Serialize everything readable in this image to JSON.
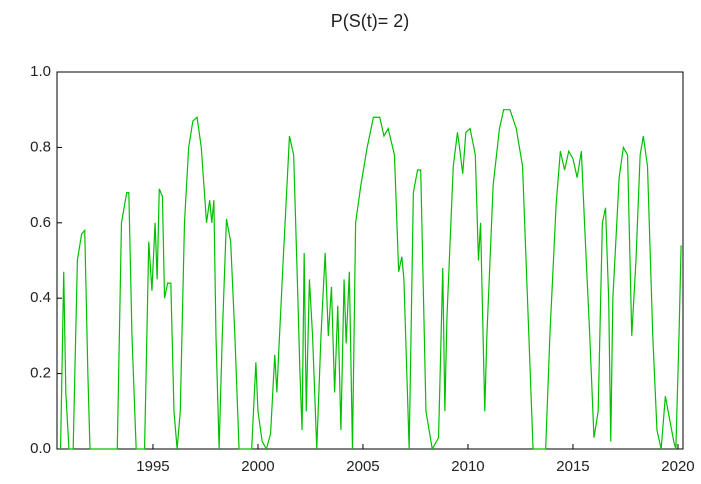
{
  "chart_data": {
    "type": "line",
    "title": "P(S(t)= 2)",
    "x": [
      1990.6,
      1990.75,
      1990.85,
      1991.0,
      1991.2,
      1991.4,
      1991.6,
      1991.75,
      1991.9,
      1992.0,
      1993.1,
      1993.3,
      1993.5,
      1993.75,
      1993.85,
      1994.0,
      1994.2,
      1994.6,
      1994.8,
      1994.95,
      1995.1,
      1995.2,
      1995.3,
      1995.45,
      1995.55,
      1995.7,
      1995.85,
      1996.0,
      1996.15,
      1996.3,
      1996.5,
      1996.7,
      1996.9,
      1997.1,
      1997.3,
      1997.55,
      1997.7,
      1997.8,
      1997.9,
      1998.0,
      1998.15,
      1998.3,
      1998.5,
      1998.7,
      1998.9,
      1999.1,
      1999.7,
      1999.9,
      2000.0,
      2000.2,
      2000.4,
      2000.6,
      2000.8,
      2000.9,
      2001.0,
      2001.2,
      2001.5,
      2001.7,
      2001.9,
      2002.0,
      2002.1,
      2002.2,
      2002.3,
      2002.45,
      2002.6,
      2002.8,
      2003.0,
      2003.2,
      2003.35,
      2003.5,
      2003.65,
      2003.8,
      2003.95,
      2004.1,
      2004.2,
      2004.35,
      2004.5,
      2004.65,
      2004.9,
      2005.2,
      2005.5,
      2005.8,
      2006.0,
      2006.2,
      2006.5,
      2006.7,
      2006.85,
      2006.95,
      2007.2,
      2007.4,
      2007.6,
      2007.75,
      2008.0,
      2008.3,
      2008.6,
      2008.8,
      2008.9,
      2009.0,
      2009.3,
      2009.5,
      2009.6,
      2009.75,
      2009.9,
      2010.1,
      2010.35,
      2010.5,
      2010.6,
      2010.8,
      2010.9,
      2011.2,
      2011.5,
      2011.7,
      2012.0,
      2012.3,
      2012.6,
      2012.9,
      2013.1,
      2013.7,
      2013.9,
      2014.2,
      2014.4,
      2014.6,
      2014.8,
      2015.0,
      2015.2,
      2015.4,
      2015.55,
      2015.8,
      2016.0,
      2016.2,
      2016.4,
      2016.55,
      2016.7,
      2016.8,
      2016.9,
      2017.2,
      2017.4,
      2017.6,
      2017.8,
      2018.0,
      2018.2,
      2018.35,
      2018.55,
      2018.8,
      2019.0,
      2019.2,
      2019.4,
      2019.6,
      2019.8,
      2019.9,
      2020.05,
      2020.15
    ],
    "series": [
      {
        "color": "#00c000",
        "values": [
          0.0,
          0.47,
          0.15,
          0.0,
          0.0,
          0.5,
          0.57,
          0.58,
          0.2,
          0.0,
          0.0,
          0.0,
          0.6,
          0.68,
          0.68,
          0.3,
          0.0,
          0.0,
          0.55,
          0.42,
          0.6,
          0.45,
          0.69,
          0.67,
          0.4,
          0.44,
          0.44,
          0.1,
          0.0,
          0.1,
          0.6,
          0.8,
          0.87,
          0.88,
          0.8,
          0.6,
          0.66,
          0.6,
          0.66,
          0.3,
          0.0,
          0.3,
          0.61,
          0.55,
          0.3,
          0.0,
          0.0,
          0.23,
          0.1,
          0.02,
          0.0,
          0.04,
          0.25,
          0.15,
          0.27,
          0.5,
          0.83,
          0.78,
          0.4,
          0.2,
          0.05,
          0.52,
          0.1,
          0.45,
          0.3,
          0.0,
          0.3,
          0.52,
          0.3,
          0.43,
          0.15,
          0.38,
          0.05,
          0.45,
          0.28,
          0.47,
          0.0,
          0.6,
          0.7,
          0.8,
          0.88,
          0.88,
          0.83,
          0.85,
          0.78,
          0.47,
          0.51,
          0.45,
          0.0,
          0.68,
          0.74,
          0.74,
          0.1,
          0.0,
          0.03,
          0.48,
          0.1,
          0.35,
          0.75,
          0.84,
          0.8,
          0.73,
          0.84,
          0.85,
          0.78,
          0.5,
          0.6,
          0.1,
          0.3,
          0.7,
          0.85,
          0.9,
          0.9,
          0.85,
          0.75,
          0.3,
          0.0,
          0.0,
          0.3,
          0.65,
          0.79,
          0.74,
          0.79,
          0.77,
          0.72,
          0.79,
          0.6,
          0.3,
          0.03,
          0.1,
          0.6,
          0.64,
          0.4,
          0.02,
          0.4,
          0.72,
          0.8,
          0.78,
          0.3,
          0.5,
          0.78,
          0.83,
          0.75,
          0.3,
          0.05,
          0.0,
          0.14,
          0.08,
          0.02,
          0.0,
          0.3,
          0.54
        ]
      }
    ],
    "xlim": [
      1990.43,
      2020.24
    ],
    "xticks": [
      1995,
      2000,
      2005,
      2010,
      2015,
      2020
    ],
    "ylim": [
      0,
      1
    ],
    "yticks": [
      {
        "value": 0,
        "label": "0.0"
      },
      {
        "value": 0.2,
        "label": "0.2"
      },
      {
        "value": 0.4,
        "label": "0.4"
      },
      {
        "value": 0.6,
        "label": "0.6"
      },
      {
        "value": 0.8,
        "label": "0.8"
      },
      {
        "value": 1,
        "label": "1.0"
      }
    ]
  }
}
